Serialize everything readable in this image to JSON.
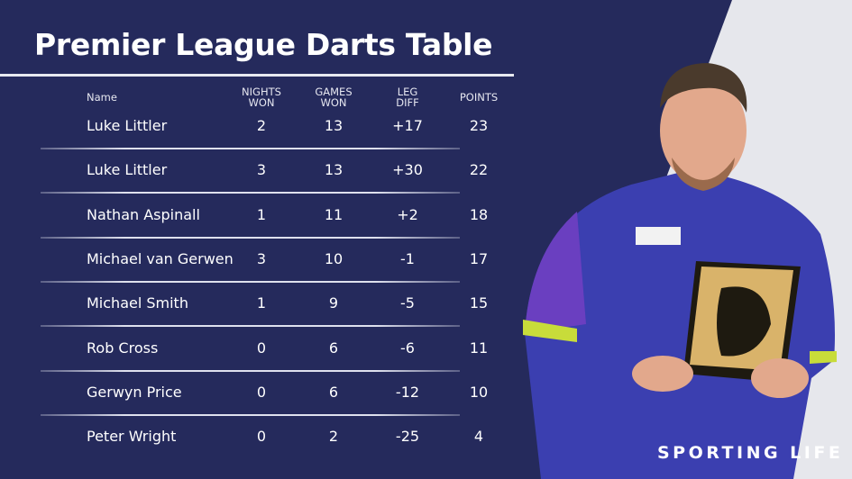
{
  "title": "Premier League Darts Table",
  "columns": {
    "name": "Name",
    "nights": [
      "NIGHTS",
      "WON"
    ],
    "games": [
      "GAMES",
      "WON"
    ],
    "leg": [
      "LEG",
      "DIFF"
    ],
    "points": "POINTS"
  },
  "rows": [
    {
      "name": "Luke Littler",
      "nights": "2",
      "games": "13",
      "leg": "+17",
      "points": "23"
    },
    {
      "name": "Luke Littler",
      "nights": "3",
      "games": "13",
      "leg": "+30",
      "points": "22"
    },
    {
      "name": "Nathan Aspinall",
      "nights": "1",
      "games": "11",
      "leg": "+2",
      "points": "18"
    },
    {
      "name": "Michael van Gerwen",
      "nights": "3",
      "games": "10",
      "leg": "-1",
      "points": "17"
    },
    {
      "name": "Michael Smith",
      "nights": "1",
      "games": "9",
      "leg": "-5",
      "points": "15"
    },
    {
      "name": "Rob Cross",
      "nights": "0",
      "games": "6",
      "leg": "-6",
      "points": "11"
    },
    {
      "name": "Gerwyn Price",
      "nights": "0",
      "games": "6",
      "leg": "-12",
      "points": "10"
    },
    {
      "name": "Peter Wright",
      "nights": "0",
      "games": "2",
      "leg": "-25",
      "points": "4"
    }
  ],
  "brand": "SPORTING LIFE",
  "colors": {
    "background": "#252a5c",
    "panel": "#e6e7ec",
    "shirt": "#3b3fb0",
    "trophy": "#d9b36a"
  }
}
